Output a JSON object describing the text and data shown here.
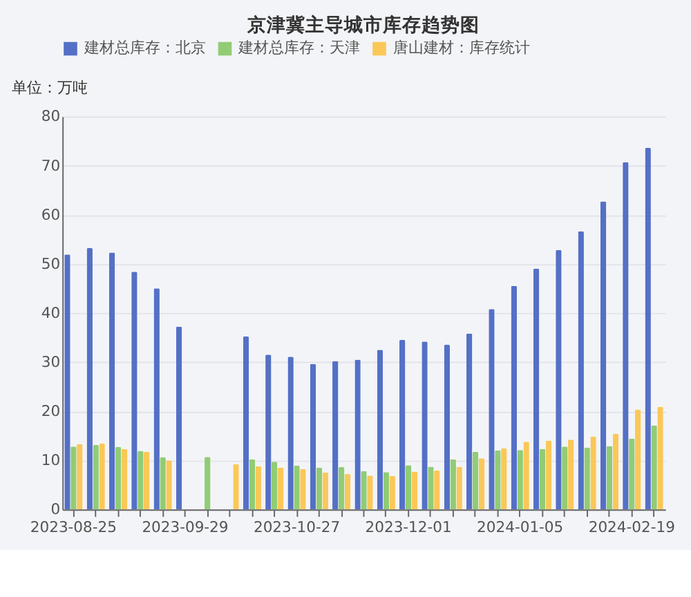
{
  "chart_data": {
    "type": "bar",
    "title": "京津冀主导城市库存趋势图",
    "ylabel": "单位：万吨",
    "categories": [
      "2023-08-25",
      null,
      null,
      null,
      null,
      "2023-09-29",
      null,
      null,
      null,
      null,
      "2023-10-27",
      null,
      null,
      null,
      null,
      "2023-12-01",
      null,
      null,
      null,
      null,
      "2024-01-05",
      null,
      null,
      null,
      null,
      "2024-02-19",
      null
    ],
    "series": [
      {
        "name": "建材总库存：北京",
        "color": "#5470c6",
        "values": [
          51.9,
          53.2,
          52.3,
          48.4,
          45.0,
          37.2,
          null,
          null,
          35.2,
          31.5,
          31.1,
          29.6,
          30.2,
          30.5,
          32.5,
          34.5,
          34.2,
          33.5,
          35.8,
          40.8,
          45.5,
          49.0,
          52.8,
          56.6,
          62.7,
          70.7,
          73.6
        ]
      },
      {
        "name": "建材总库存：天津",
        "color": "#91cc75",
        "values": [
          12.8,
          13.1,
          12.7,
          11.9,
          10.6,
          null,
          10.7,
          null,
          10.2,
          9.7,
          8.9,
          8.5,
          8.6,
          7.8,
          7.6,
          9.0,
          8.7,
          10.2,
          11.7,
          12.0,
          12.1,
          12.3,
          12.8,
          12.6,
          12.9,
          14.4,
          17.1
        ]
      },
      {
        "name": "唐山建材：库存统计",
        "color": "#fac858",
        "values": [
          13.3,
          13.4,
          12.3,
          11.7,
          10.0,
          null,
          null,
          9.2,
          8.8,
          8.5,
          8.2,
          7.5,
          7.2,
          6.9,
          6.8,
          7.7,
          7.9,
          8.7,
          10.4,
          12.4,
          13.8,
          14.0,
          14.2,
          14.8,
          15.4,
          20.3,
          20.9
        ]
      }
    ],
    "ylim": [
      0,
      80
    ],
    "yticks": [
      0,
      10,
      20,
      30,
      40,
      50,
      60,
      70,
      80
    ],
    "grid": "y",
    "legend": "top"
  }
}
